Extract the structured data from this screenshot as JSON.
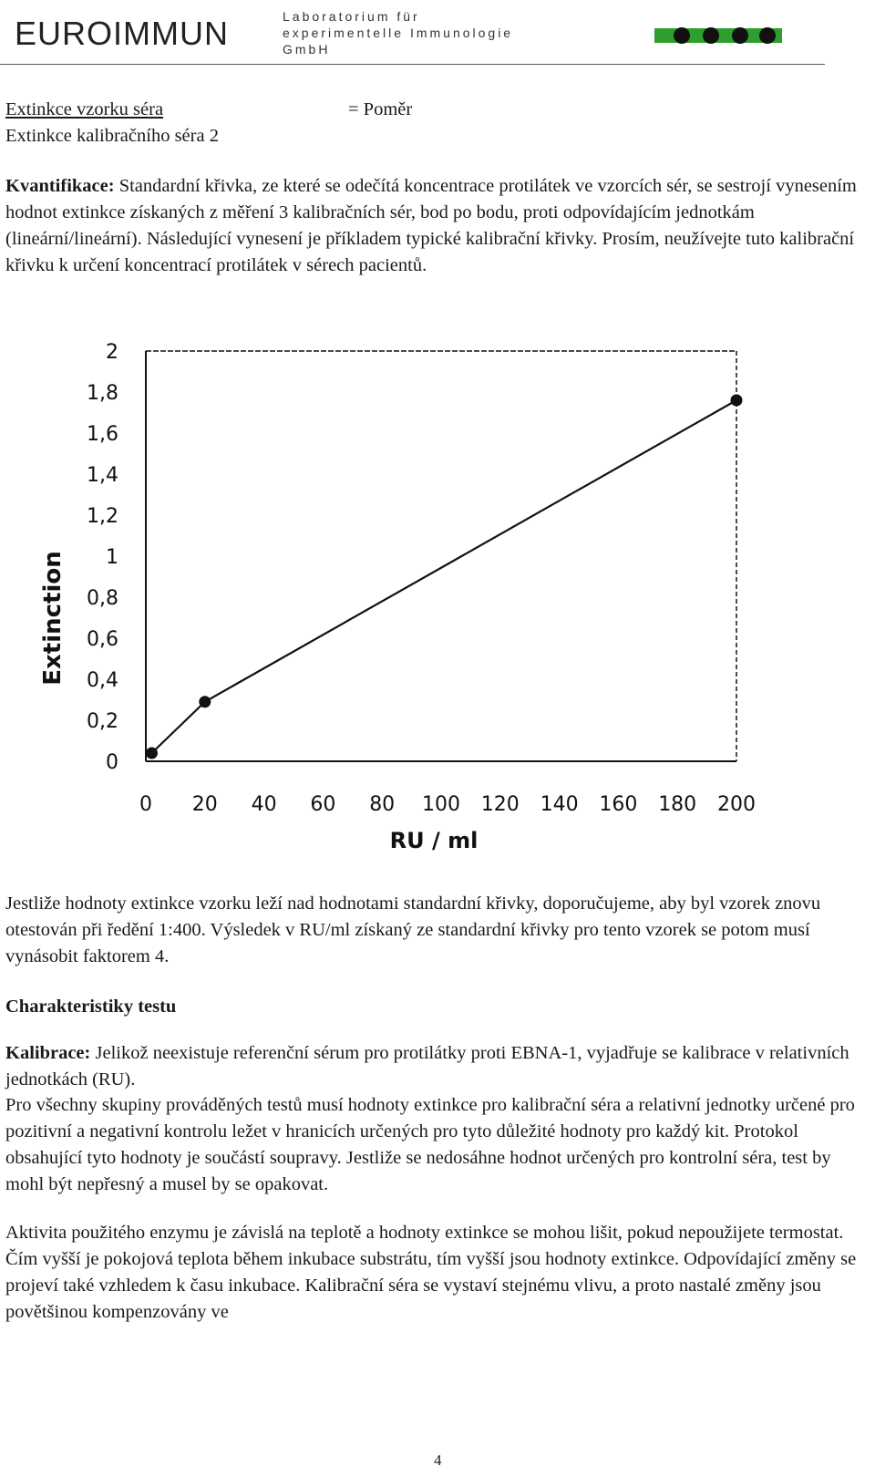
{
  "header": {
    "logo": "EUROIMMUN",
    "lab_line1": "Laboratorium für",
    "lab_line2": "experimentelle Immunologie",
    "lab_line3": "GmbH",
    "brand_color": "#2e9e2e"
  },
  "ratio": {
    "numerator": "Extinkce vzorku séra",
    "denominator": "Extinkce kalibračního séra 2",
    "result": "=  Poměr"
  },
  "quantification": {
    "label": "Kvantifikace:",
    "text": " Standardní  křivka, ze které se odečítá koncentrace protilátek ve vzorcích  sér, se sestrojí vynesením hodnot extinkce získaných z měření 3 kalibračních sér, bod po bodu, proti odpovídajícím jednotkám (lineární/lineární). Následující vynesení je příkladem typické kalibrační křivky. Prosím, neužívejte tuto kalibrační křivku k určení koncentrací protilátek v sérech pacientů."
  },
  "chart_data": {
    "type": "line",
    "xlabel": "RU / ml",
    "ylabel": "Extinction",
    "xlim": [
      0,
      200
    ],
    "ylim": [
      0,
      2
    ],
    "x_ticks": [
      "0",
      "20",
      "40",
      "60",
      "80",
      "100",
      "120",
      "140",
      "160",
      "180",
      "200"
    ],
    "y_ticks": [
      "0",
      "0,2",
      "0,4",
      "0,6",
      "0,8",
      "1",
      "1,2",
      "1,4",
      "1,6",
      "1,8",
      "2"
    ],
    "x": [
      2,
      20,
      200
    ],
    "y": [
      0.04,
      0.29,
      1.76
    ],
    "grid": false,
    "line_color": "#111111"
  },
  "paragraph_dilution": "Jestliže hodnoty extinkce vzorku leží nad hodnotami standardní křivky, doporučujeme, aby byl vzorek znovu otestován při ředění 1:400. Výsledek v RU/ml získaný ze standardní křivky pro tento vzorek se potom musí vynásobit  faktorem 4.",
  "section_heading": "Charakteristiky testu",
  "calibration": {
    "label": "Kalibrace:",
    "text": " Jelikož neexistuje referenční sérum pro protilátky proti  EBNA-1, vyjadřuje se kalibrace v relativních jednotkách (RU)."
  },
  "paragraph_groups": "Pro všechny skupiny prováděných testů musí hodnoty extinkce pro kalibrační séra a relativní jednotky určené pro pozitivní a negativní kontrolu ležet v hranicích určených pro tyto důležité hodnoty pro každý kit. Protokol obsahující tyto  hodnoty je součástí soupravy. Jestliže se nedosáhne hodnot určených pro kontrolní séra, test by mohl být nepřesný a musel by se opakovat.",
  "paragraph_enzyme": "Aktivita použitého enzymu je závislá na teplotě a hodnoty extinkce se mohou lišit, pokud nepoužijete termostat. Čím vyšší je pokojová teplota během inkubace substrátu, tím vyšší jsou hodnoty extinkce. Odpovídající změny se projeví také vzhledem k času inkubace. Kalibrační séra se vystaví  stejnému vlivu, a proto nastalé  změny jsou povětšinou kompenzovány ve",
  "page_number": "4"
}
